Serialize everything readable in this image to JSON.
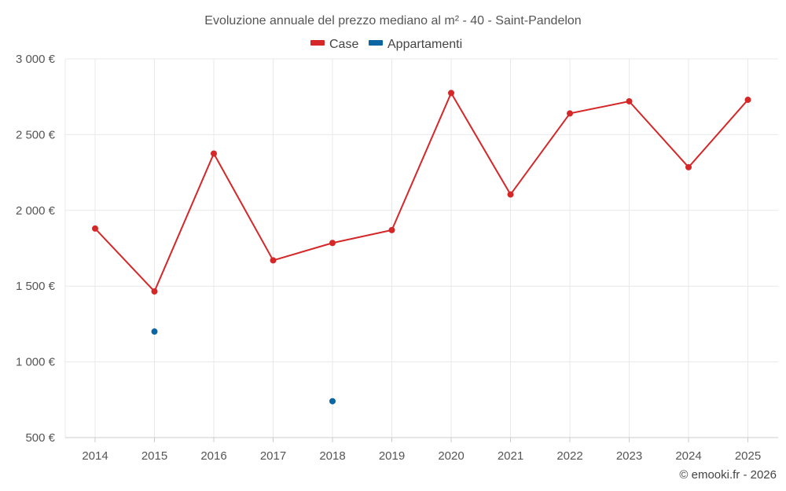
{
  "chart_data": {
    "type": "line",
    "title": "Evoluzione annuale del prezzo mediano al m² - 40 - Saint-Pandelon",
    "xlabel": "",
    "ylabel": "",
    "categories": [
      "2014",
      "2015",
      "2016",
      "2017",
      "2018",
      "2019",
      "2020",
      "2021",
      "2022",
      "2023",
      "2024",
      "2025"
    ],
    "ylim": [
      500,
      3000
    ],
    "yticks": [
      500,
      1000,
      1500,
      2000,
      2500,
      3000
    ],
    "ytick_labels": [
      "500 €",
      "1 000 €",
      "1 500 €",
      "2 000 €",
      "2 500 €",
      "3 000 €"
    ],
    "grid": true,
    "legend_position": "top-center",
    "series": [
      {
        "name": "Case",
        "color": "#d62728",
        "values": [
          1880,
          1465,
          2375,
          1670,
          1785,
          1870,
          2775,
          2105,
          2640,
          2720,
          2285,
          2730
        ]
      },
      {
        "name": "Appartamenti",
        "color": "#0a66a3",
        "values": [
          null,
          1200,
          null,
          null,
          740,
          null,
          null,
          null,
          null,
          null,
          null,
          null
        ]
      }
    ],
    "credit": "© emooki.fr - 2026"
  }
}
